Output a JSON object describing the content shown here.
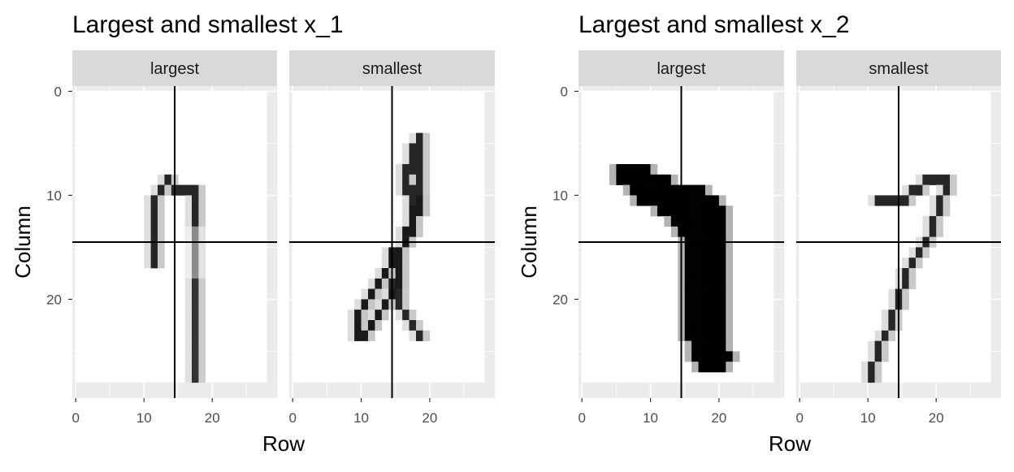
{
  "chart_data": [
    {
      "type": "heatmap",
      "title": "Largest and smallest x_1",
      "xlabel": "Row",
      "ylabel": "Column",
      "xlim": [
        -0.5,
        29.5
      ],
      "ylim": [
        -0.5,
        29.5
      ],
      "y_reversed": true,
      "x_ticks": [
        0,
        10,
        20
      ],
      "y_ticks": [
        0,
        10,
        20
      ],
      "grid": "on",
      "facets": [
        {
          "label": "largest",
          "vline": 14.5,
          "hline": 14.5,
          "strokes": [
            {
              "points": [
                [
                  11,
                  16
                ],
                [
                  11,
                  13
                ],
                [
                  11,
                  11
                ],
                [
                  11,
                  10
                ],
                [
                  12,
                  9
                ],
                [
                  13,
                  8
                ],
                [
                  14,
                  9
                ],
                [
                  15,
                  9
                ],
                [
                  16,
                  9
                ],
                [
                  17,
                  9
                ],
                [
                  17,
                  10
                ],
                [
                  17,
                  12
                ]
              ],
              "value": 0.85
            },
            {
              "points": [
                [
                  17,
                  12
                ],
                [
                  17,
                  16
                ],
                [
                  17,
                  18
                ]
              ],
              "value": 0.45
            },
            {
              "points": [
                [
                  17,
                  18
                ],
                [
                  17,
                  21
                ],
                [
                  17,
                  24
                ],
                [
                  17,
                  27
                ]
              ],
              "value": 0.8
            }
          ]
        },
        {
          "label": "smallest",
          "vline": 14.5,
          "hline": 14.5,
          "strokes": [
            {
              "points": [
                [
                  18,
                  4
                ],
                [
                  17,
                  6
                ],
                [
                  16,
                  8
                ],
                [
                  17,
                  10
                ],
                [
                  18,
                  9
                ],
                [
                  18,
                  7
                ],
                [
                  18,
                  5
                ]
              ],
              "value": 0.85
            },
            {
              "points": [
                [
                  18,
                  10
                ],
                [
                  17,
                  12
                ],
                [
                  16,
                  14
                ],
                [
                  15,
                  15
                ],
                [
                  14,
                  16
                ],
                [
                  13,
                  17
                ],
                [
                  12,
                  18
                ],
                [
                  11,
                  19
                ],
                [
                  10,
                  20
                ],
                [
                  9,
                  21
                ],
                [
                  9,
                  23
                ],
                [
                  10,
                  23
                ],
                [
                  11,
                  22
                ],
                [
                  12,
                  21
                ],
                [
                  13,
                  20
                ],
                [
                  14,
                  19
                ],
                [
                  15,
                  18
                ],
                [
                  15,
                  16
                ],
                [
                  14,
                  15
                ]
              ],
              "value": 0.9
            },
            {
              "points": [
                [
                  14,
                  18
                ],
                [
                  15,
                  20
                ],
                [
                  16,
                  21
                ],
                [
                  17,
                  22
                ],
                [
                  18,
                  23
                ]
              ],
              "value": 0.85
            }
          ]
        }
      ]
    },
    {
      "type": "heatmap",
      "title": "Largest and smallest x_2",
      "xlabel": "Row",
      "ylabel": "Column",
      "xlim": [
        -0.5,
        29.5
      ],
      "ylim": [
        -0.5,
        29.5
      ],
      "y_reversed": true,
      "x_ticks": [
        0,
        10,
        20
      ],
      "y_ticks": [
        0,
        10,
        20
      ],
      "grid": "on",
      "facets": [
        {
          "label": "largest",
          "vline": 14.5,
          "hline": 14.5,
          "blob": {
            "value": 1.0,
            "rows": [
              [
                7,
                5,
                9
              ],
              [
                8,
                5,
                12
              ],
              [
                9,
                7,
                17
              ],
              [
                10,
                8,
                19
              ],
              [
                11,
                11,
                20
              ],
              [
                12,
                13,
                20
              ],
              [
                13,
                14,
                20
              ],
              [
                14,
                15,
                20
              ],
              [
                15,
                15,
                20
              ],
              [
                16,
                15,
                20
              ],
              [
                17,
                15,
                20
              ],
              [
                18,
                15,
                20
              ],
              [
                19,
                15,
                20
              ],
              [
                20,
                15,
                20
              ],
              [
                21,
                15,
                20
              ],
              [
                22,
                15,
                20
              ],
              [
                23,
                15,
                20
              ],
              [
                24,
                16,
                20
              ],
              [
                25,
                16,
                21
              ],
              [
                26,
                17,
                20
              ]
            ]
          }
        },
        {
          "label": "smallest",
          "vline": 14.5,
          "hline": 14.5,
          "strokes": [
            {
              "points": [
                [
                  11,
                  10
                ],
                [
                  12,
                  10
                ],
                [
                  13,
                  10
                ],
                [
                  14,
                  10
                ],
                [
                  15,
                  10
                ],
                [
                  16,
                  9
                ],
                [
                  17,
                  9
                ],
                [
                  18,
                  8
                ],
                [
                  19,
                  8
                ],
                [
                  20,
                  8
                ],
                [
                  21,
                  8
                ],
                [
                  21,
                  9
                ],
                [
                  20,
                  10
                ],
                [
                  20,
                  11
                ],
                [
                  19,
                  12
                ],
                [
                  19,
                  13
                ],
                [
                  18,
                  14
                ],
                [
                  17,
                  15
                ],
                [
                  16,
                  16
                ],
                [
                  15,
                  17
                ],
                [
                  15,
                  18
                ],
                [
                  14,
                  19
                ],
                [
                  14,
                  20
                ],
                [
                  13,
                  21
                ],
                [
                  13,
                  22
                ],
                [
                  12,
                  23
                ],
                [
                  11,
                  24
                ],
                [
                  11,
                  25
                ],
                [
                  10,
                  26
                ],
                [
                  10,
                  27
                ]
              ],
              "value": 0.85
            }
          ]
        }
      ]
    }
  ]
}
